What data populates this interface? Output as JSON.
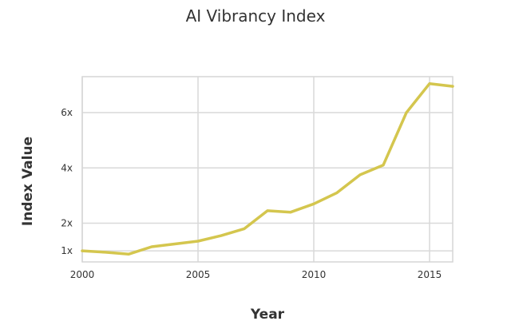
{
  "chart_data": {
    "type": "line",
    "title": "AI Vibrancy Index",
    "xlabel": "Year",
    "ylabel": "Index Value",
    "xlim": [
      2000,
      2016
    ],
    "ylim": [
      0.6,
      7.3
    ],
    "x_ticks": [
      2000,
      2005,
      2010,
      2015
    ],
    "y_ticks": [
      {
        "value": 1,
        "label": "1x"
      },
      {
        "value": 2,
        "label": "2x"
      },
      {
        "value": 4,
        "label": "4x"
      },
      {
        "value": 6,
        "label": "6x"
      }
    ],
    "x_tick_labels": [
      "2000",
      "2005",
      "2010",
      "2015"
    ],
    "y_tick_labels": [
      "6x",
      "4x",
      "2x",
      "1x"
    ],
    "grid": true,
    "series": [
      {
        "color": "#d4c64e",
        "x": [
          2000,
          2001,
          2002,
          2003,
          2004,
          2005,
          2006,
          2007,
          2008,
          2009,
          2010,
          2011,
          2012,
          2013,
          2014,
          2015,
          2016
        ],
        "y": [
          1.0,
          0.95,
          0.88,
          1.15,
          1.25,
          1.35,
          1.55,
          1.8,
          2.45,
          2.4,
          2.7,
          3.1,
          3.75,
          4.1,
          6.0,
          7.05,
          6.95
        ]
      }
    ]
  }
}
